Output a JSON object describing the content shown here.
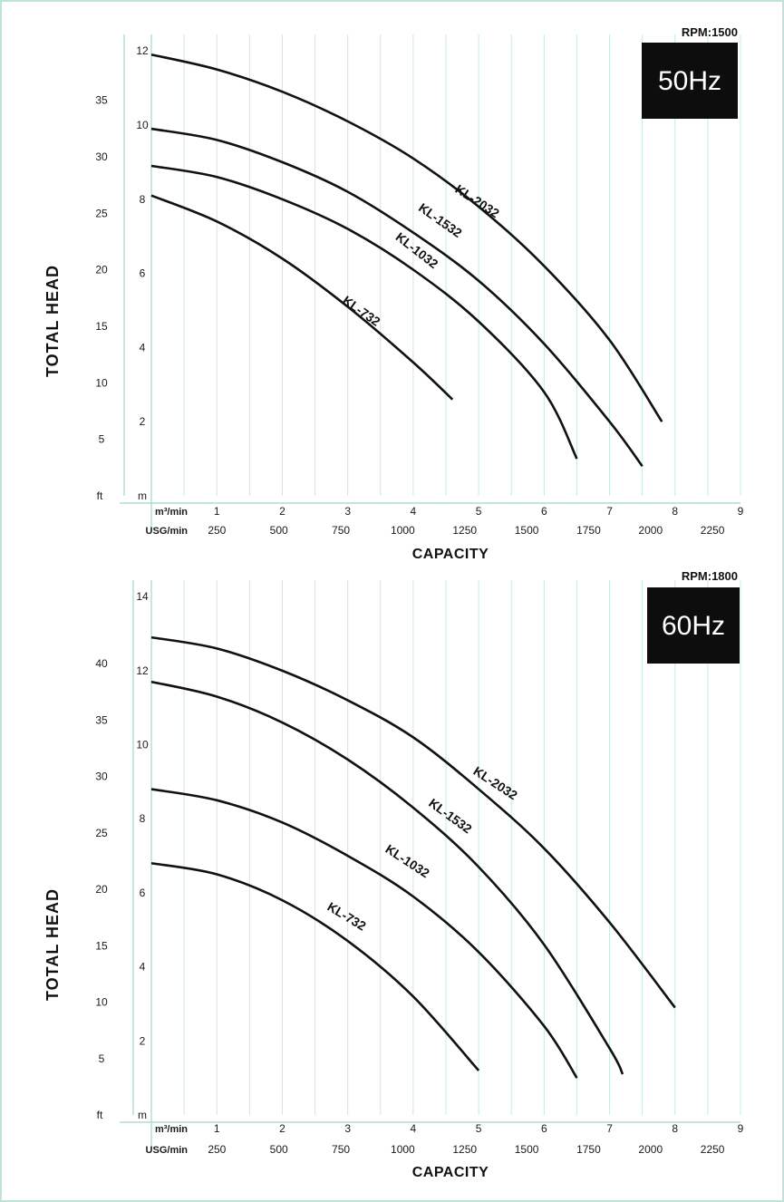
{
  "chart_data": [
    {
      "type": "line",
      "badge": "50Hz",
      "rpm": "RPM:1500",
      "ylabel": "TOTAL  HEAD",
      "xlabel": "CAPACITY",
      "y_units": {
        "ft": "ft",
        "m": "m"
      },
      "x_units": {
        "m3": "m³/min",
        "usg": "USG/min"
      },
      "xlim": [
        0,
        9
      ],
      "ylim_m": [
        0,
        12.2
      ],
      "x_ticks_m3": [
        "1",
        "2",
        "3",
        "4",
        "5",
        "6",
        "7",
        "8",
        "9"
      ],
      "x_ticks_usg": [
        "250",
        "500",
        "750",
        "1000",
        "1250",
        "1500",
        "1750",
        "2000",
        "2250"
      ],
      "y_ticks_m": [
        "2",
        "4",
        "6",
        "8",
        "10",
        "12"
      ],
      "y_ticks_ft": [
        "5",
        "10",
        "15",
        "20",
        "25",
        "30",
        "35"
      ],
      "series": [
        {
          "name": "KL-2032",
          "x": [
            0,
            1,
            2,
            3,
            4,
            5,
            6,
            7,
            7.8
          ],
          "y": [
            11.9,
            11.5,
            10.9,
            10.1,
            9.1,
            7.8,
            6.2,
            4.2,
            2.0
          ]
        },
        {
          "name": "KL-1532",
          "x": [
            0,
            1,
            2,
            3,
            4,
            5,
            6,
            7,
            7.5
          ],
          "y": [
            9.9,
            9.6,
            9.0,
            8.2,
            7.1,
            5.8,
            4.1,
            2.0,
            0.8
          ]
        },
        {
          "name": "KL-1032",
          "x": [
            0,
            1,
            2,
            3,
            4,
            5,
            6,
            6.5
          ],
          "y": [
            8.9,
            8.6,
            8.0,
            7.2,
            6.1,
            4.7,
            2.8,
            1.0
          ]
        },
        {
          "name": "KL-732",
          "x": [
            0,
            1,
            2,
            3,
            4,
            4.6
          ],
          "y": [
            8.1,
            7.4,
            6.4,
            5.1,
            3.6,
            2.6
          ]
        }
      ]
    },
    {
      "type": "line",
      "badge": "60Hz",
      "rpm": "RPM:1800",
      "ylabel": "TOTAL  HEAD",
      "xlabel": "CAPACITY",
      "y_units": {
        "ft": "ft",
        "m": "m"
      },
      "x_units": {
        "m3": "m³/min",
        "usg": "USG/min"
      },
      "xlim": [
        0,
        9
      ],
      "ylim_m": [
        0,
        14.2
      ],
      "x_ticks_m3": [
        "1",
        "2",
        "3",
        "4",
        "5",
        "6",
        "7",
        "8",
        "9"
      ],
      "x_ticks_usg": [
        "250",
        "500",
        "750",
        "1000",
        "1250",
        "1500",
        "1750",
        "2000",
        "2250"
      ],
      "y_ticks_m": [
        "2",
        "4",
        "6",
        "8",
        "10",
        "12",
        "14"
      ],
      "y_ticks_ft": [
        "5",
        "10",
        "15",
        "20",
        "25",
        "30",
        "35",
        "40"
      ],
      "series": [
        {
          "name": "KL-2032",
          "x": [
            0,
            1,
            2,
            3,
            4,
            5,
            6,
            7,
            8
          ],
          "y": [
            12.9,
            12.6,
            12.0,
            11.2,
            10.2,
            8.8,
            7.2,
            5.2,
            2.9
          ]
        },
        {
          "name": "KL-1532",
          "x": [
            0,
            1,
            2,
            3,
            4,
            5,
            6,
            7,
            7.2
          ],
          "y": [
            11.7,
            11.3,
            10.6,
            9.6,
            8.3,
            6.7,
            4.6,
            1.8,
            1.1
          ]
        },
        {
          "name": "KL-1032",
          "x": [
            0,
            1,
            2,
            3,
            4,
            5,
            6,
            6.5
          ],
          "y": [
            8.8,
            8.5,
            7.9,
            7.0,
            5.9,
            4.4,
            2.4,
            1.0
          ]
        },
        {
          "name": "KL-732",
          "x": [
            0,
            1,
            2,
            3,
            4,
            5
          ],
          "y": [
            6.8,
            6.5,
            5.8,
            4.7,
            3.2,
            1.2
          ]
        }
      ]
    }
  ]
}
